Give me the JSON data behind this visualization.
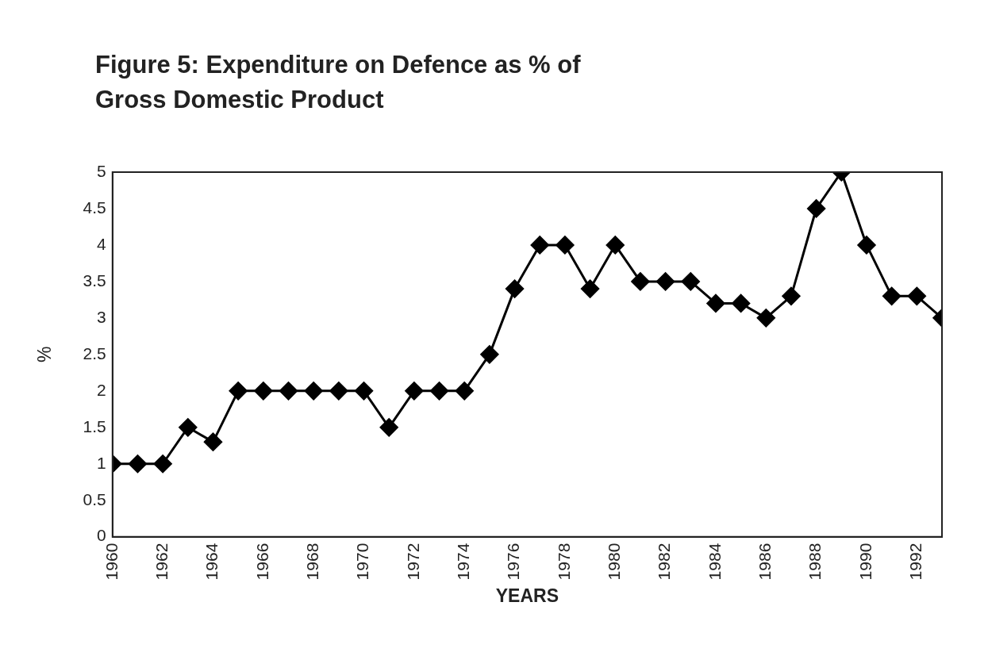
{
  "chart_data": {
    "type": "line",
    "title": "Figure 5: Expenditure on Defence as % of Gross Domestic Product",
    "xlabel": "YEARS",
    "ylabel": "%",
    "x": [
      1960,
      1961,
      1962,
      1963,
      1964,
      1965,
      1966,
      1967,
      1968,
      1969,
      1970,
      1971,
      1972,
      1973,
      1974,
      1975,
      1976,
      1977,
      1978,
      1979,
      1980,
      1981,
      1982,
      1983,
      1984,
      1985,
      1986,
      1987,
      1988,
      1989,
      1990,
      1991,
      1992,
      1993
    ],
    "series": [
      {
        "color": "#000000",
        "values": [
          1,
          1,
          1,
          1.5,
          1.3,
          2,
          2,
          2,
          2,
          2,
          2,
          1.5,
          2,
          2,
          2,
          2.5,
          3.4,
          4,
          4,
          3.4,
          4,
          3.5,
          3.5,
          3.5,
          3.2,
          3.2,
          3,
          3.3,
          4.5,
          5,
          4,
          3.3,
          3.3,
          3
        ]
      }
    ],
    "xlim": [
      1960,
      1993
    ],
    "xticks": [
      1960,
      1962,
      1964,
      1966,
      1968,
      1970,
      1972,
      1974,
      1976,
      1978,
      1980,
      1982,
      1984,
      1986,
      1988,
      1990,
      1992
    ],
    "ylim": [
      0,
      5
    ],
    "yticks": [
      0,
      0.5,
      1,
      1.5,
      2,
      2.5,
      3,
      3.5,
      4,
      4.5,
      5
    ],
    "grid": false,
    "legend": false,
    "marker": "diamond",
    "line_style": "solid"
  }
}
